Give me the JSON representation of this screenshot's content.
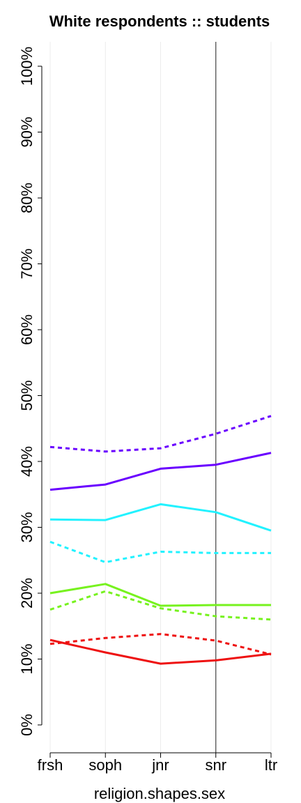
{
  "chart_data": {
    "type": "line",
    "title": "White respondents :: students",
    "xlabel": "religion.shapes.sex",
    "ylabel": "",
    "categories": [
      "frsh",
      "soph",
      "jnr",
      "snr",
      "ltr"
    ],
    "y_tick_labels": [
      "0%",
      "10%",
      "20%",
      "30%",
      "40%",
      "50%",
      "60%",
      "70%",
      "80%",
      "90%",
      "100%"
    ],
    "ylim": [
      0,
      100
    ],
    "y_unit": "%",
    "grid": "vertical lines at each category",
    "reference_line_at": "snr",
    "legend": "none",
    "series": [
      {
        "color": "#6a00ff",
        "style": "solid",
        "values": [
          35.7,
          36.5,
          38.9,
          39.5,
          41.3
        ]
      },
      {
        "color": "#6a00ff",
        "style": "dashed",
        "values": [
          42.2,
          41.5,
          42.0,
          44.2,
          46.9
        ]
      },
      {
        "color": "#22f2ff",
        "style": "solid",
        "values": [
          31.2,
          31.1,
          33.5,
          32.3,
          29.5
        ]
      },
      {
        "color": "#22f2ff",
        "style": "dashed",
        "values": [
          27.8,
          24.7,
          26.3,
          26.1,
          26.1
        ]
      },
      {
        "color": "#77f21f",
        "style": "solid",
        "values": [
          20.0,
          21.4,
          18.1,
          18.2,
          18.2
        ]
      },
      {
        "color": "#77f21f",
        "style": "dashed",
        "values": [
          17.5,
          20.3,
          17.7,
          16.5,
          16.0
        ]
      },
      {
        "color": "#ee1111",
        "style": "solid",
        "values": [
          12.9,
          11.0,
          9.3,
          9.8,
          10.8
        ]
      },
      {
        "color": "#ee1111",
        "style": "dashed",
        "values": [
          12.3,
          13.2,
          13.8,
          12.8,
          10.7
        ]
      }
    ]
  }
}
